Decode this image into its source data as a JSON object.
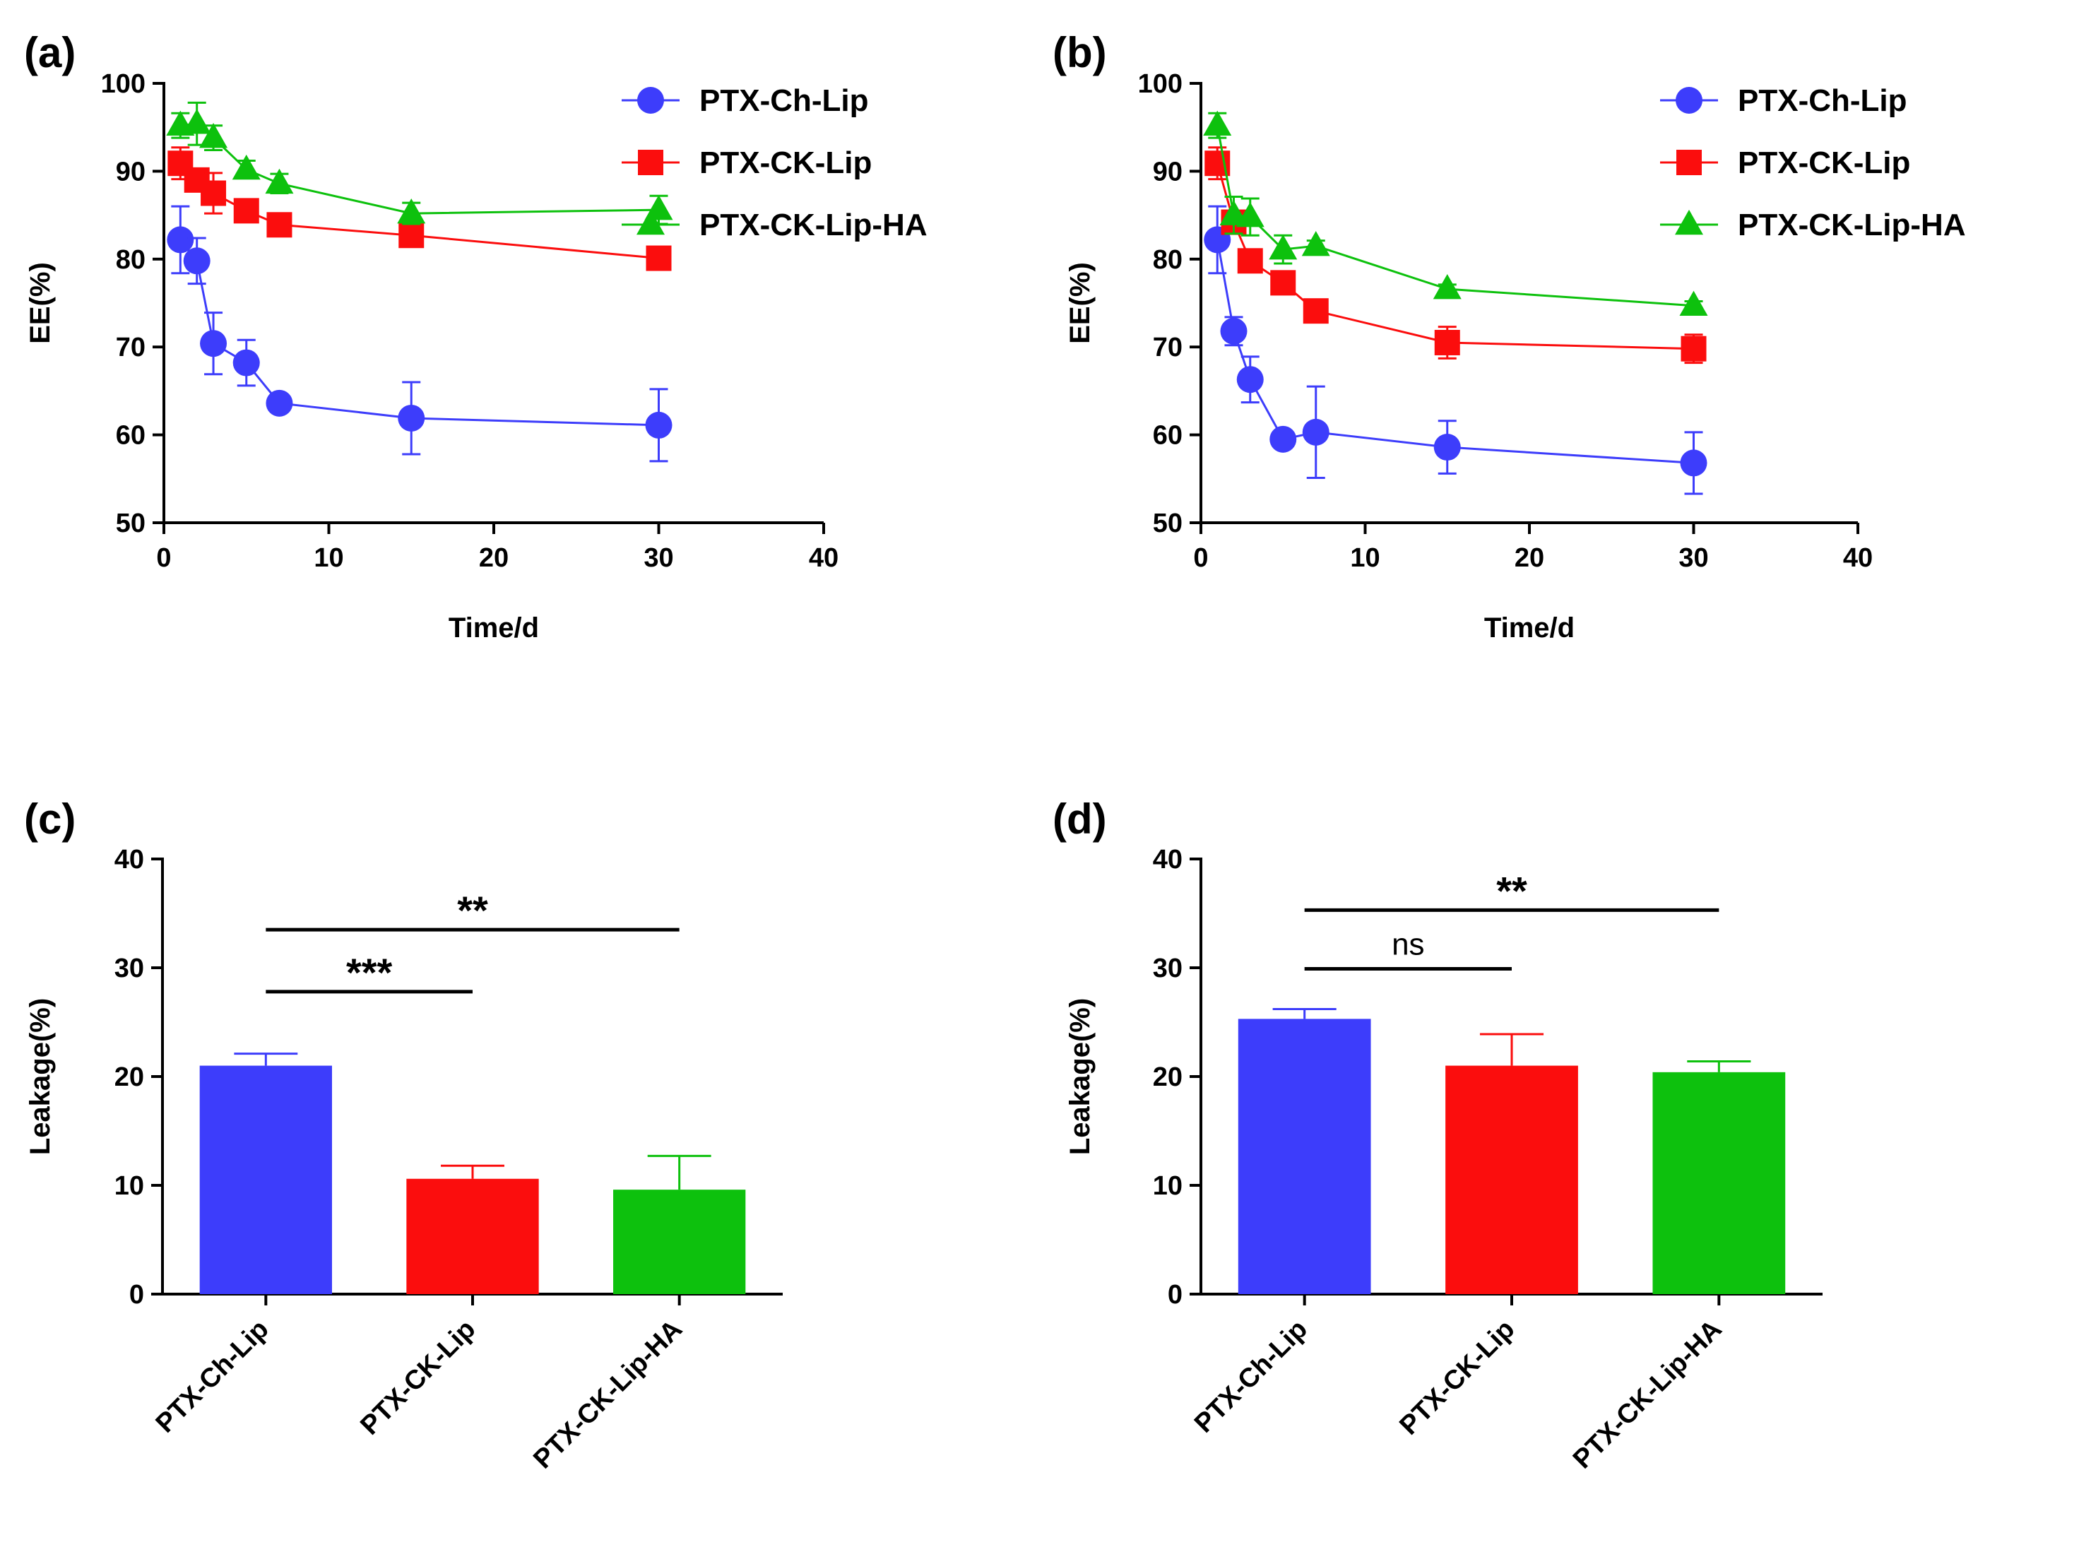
{
  "colors": {
    "ch": "#3d3dfb",
    "ck": "#fb0d0d",
    "ha": "#0dc10d",
    "axis": "#000000"
  },
  "chart_data": [
    {
      "type": "line",
      "panel": "(a)",
      "title": "",
      "xlabel": "Time/d",
      "ylabel": "EE(%)",
      "xlim": [
        0,
        40
      ],
      "ylim": [
        50,
        100
      ],
      "xticks": [
        0,
        10,
        20,
        30,
        40
      ],
      "yticks": [
        50,
        60,
        70,
        80,
        90,
        100
      ],
      "legend_position": "top-right",
      "series": [
        {
          "name": "PTX-Ch-Lip",
          "color": "ch",
          "marker": "circle",
          "x": [
            1,
            2,
            3,
            5,
            7,
            15,
            30
          ],
          "y": [
            82.2,
            79.8,
            70.4,
            68.2,
            63.6,
            61.9,
            61.1
          ],
          "err": [
            3.8,
            2.6,
            3.5,
            2.6,
            0.6,
            4.1,
            4.1
          ]
        },
        {
          "name": "PTX-CK-Lip",
          "color": "ck",
          "marker": "square",
          "x": [
            1,
            2,
            3,
            5,
            7,
            15,
            30
          ],
          "y": [
            90.9,
            89.0,
            87.5,
            85.5,
            83.9,
            82.7,
            80.1
          ],
          "err": [
            1.8,
            1.2,
            2.3,
            0.6,
            0.6,
            0.8,
            0.6
          ]
        },
        {
          "name": "PTX-CK-Lip-HA",
          "color": "ha",
          "marker": "triangle",
          "x": [
            1,
            2,
            3,
            5,
            7,
            15,
            30
          ],
          "y": [
            95.2,
            95.4,
            93.8,
            90.2,
            88.6,
            85.2,
            85.6
          ],
          "err": [
            1.4,
            2.4,
            1.4,
            1.0,
            1.1,
            1.2,
            1.6
          ]
        }
      ]
    },
    {
      "type": "line",
      "panel": "(b)",
      "title": "",
      "xlabel": "Time/d",
      "ylabel": "EE(%)",
      "xlim": [
        0,
        40
      ],
      "ylim": [
        50,
        100
      ],
      "xticks": [
        0,
        10,
        20,
        30,
        40
      ],
      "yticks": [
        50,
        60,
        70,
        80,
        90,
        100
      ],
      "legend_position": "top-right",
      "series": [
        {
          "name": "PTX-Ch-Lip",
          "color": "ch",
          "marker": "circle",
          "x": [
            1,
            2,
            3,
            5,
            7,
            15,
            30
          ],
          "y": [
            82.2,
            71.8,
            66.3,
            59.5,
            60.3,
            58.6,
            56.8
          ],
          "err": [
            3.8,
            1.6,
            2.6,
            0.5,
            5.2,
            3.0,
            3.5
          ]
        },
        {
          "name": "PTX-CK-Lip",
          "color": "ck",
          "marker": "square",
          "x": [
            1,
            2,
            3,
            5,
            7,
            15,
            30
          ],
          "y": [
            90.9,
            84.2,
            79.8,
            77.3,
            74.1,
            70.5,
            69.8
          ],
          "err": [
            1.8,
            1.2,
            0.6,
            0.6,
            0.6,
            1.8,
            1.6
          ]
        },
        {
          "name": "PTX-CK-Lip-HA",
          "color": "ha",
          "marker": "triangle",
          "x": [
            1,
            2,
            3,
            5,
            7,
            15,
            30
          ],
          "y": [
            95.2,
            85.0,
            84.8,
            81.1,
            81.5,
            76.6,
            74.7
          ],
          "err": [
            1.4,
            2.1,
            2.1,
            1.6,
            0.6,
            0.5,
            0.5
          ]
        }
      ]
    },
    {
      "type": "bar",
      "panel": "(c)",
      "title": "",
      "xlabel": "",
      "ylabel": "Leakage(%)",
      "ylim": [
        0,
        40
      ],
      "yticks": [
        0,
        10,
        20,
        30,
        40
      ],
      "categories": [
        "PTX-Ch-Lip",
        "PTX-CK-Lip",
        "PTX-CK-Lip-HA"
      ],
      "colors": [
        "ch",
        "ck",
        "ha"
      ],
      "values": [
        21.0,
        10.6,
        9.6
      ],
      "err": [
        1.1,
        1.2,
        3.1
      ],
      "annotations": [
        {
          "from": 0,
          "to": 2,
          "label": "**",
          "y": 33.5
        },
        {
          "from": 0,
          "to": 1,
          "label": "***",
          "y": 27.8
        }
      ]
    },
    {
      "type": "bar",
      "panel": "(d)",
      "title": "",
      "xlabel": "",
      "ylabel": "Leakage(%)",
      "ylim": [
        0,
        40
      ],
      "yticks": [
        0,
        10,
        20,
        30,
        40
      ],
      "categories": [
        "PTX-Ch-Lip",
        "PTX-CK-Lip",
        "PTX-CK-Lip-HA"
      ],
      "colors": [
        "ch",
        "ck",
        "ha"
      ],
      "values": [
        25.3,
        21.0,
        20.4
      ],
      "err": [
        0.9,
        2.9,
        1.0
      ],
      "annotations": [
        {
          "from": 0,
          "to": 2,
          "label": "**",
          "y": 35.3
        },
        {
          "from": 0,
          "to": 1,
          "label": "ns",
          "y": 29.9
        }
      ]
    }
  ]
}
